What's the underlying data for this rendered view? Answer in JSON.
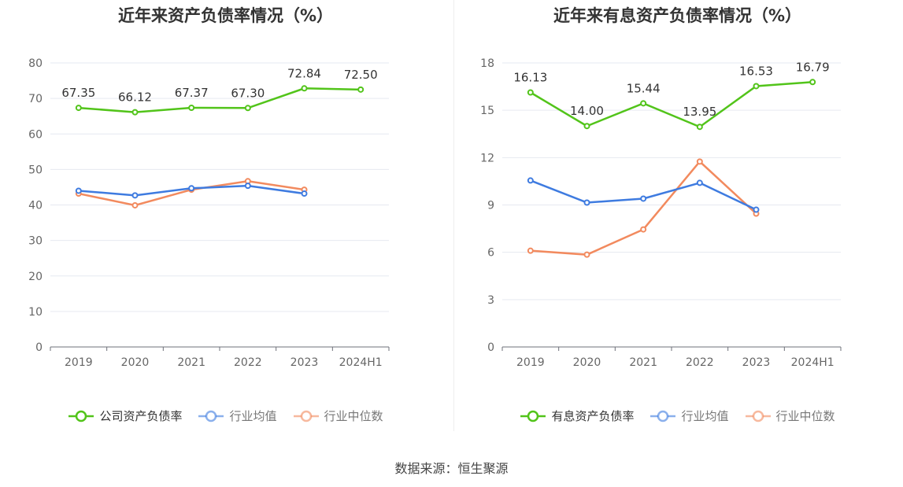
{
  "source": "数据来源：恒生聚源",
  "chart_data": [
    {
      "type": "line",
      "title": "近年来资产负债率情况（%）",
      "categories": [
        "2019",
        "2020",
        "2021",
        "2022",
        "2023",
        "2024H1"
      ],
      "ylim": [
        0,
        80
      ],
      "yticks": [
        0,
        10,
        20,
        30,
        40,
        50,
        60,
        70,
        80
      ],
      "grid": true,
      "legend_position": "bottom",
      "series": [
        {
          "name": "公司资产负债率",
          "color": "#52c41a",
          "values": [
            67.35,
            66.12,
            67.37,
            67.3,
            72.84,
            72.5
          ],
          "labels": true
        },
        {
          "name": "行业均值",
          "color": "#3e7be0",
          "values": [
            44.0,
            42.7,
            44.7,
            45.4,
            43.2,
            null
          ],
          "labels": false
        },
        {
          "name": "行业中位数",
          "color": "#f28a5e",
          "values": [
            43.2,
            39.9,
            44.3,
            46.7,
            44.3,
            null
          ],
          "labels": false
        }
      ]
    },
    {
      "type": "line",
      "title": "近年来有息资产负债率情况（%）",
      "categories": [
        "2019",
        "2020",
        "2021",
        "2022",
        "2023",
        "2024H1"
      ],
      "ylim": [
        0,
        18
      ],
      "yticks": [
        0,
        3,
        6,
        9,
        12,
        15,
        18
      ],
      "grid": true,
      "legend_position": "bottom",
      "series": [
        {
          "name": "有息资产负债率",
          "color": "#52c41a",
          "values": [
            16.13,
            14.0,
            15.44,
            13.95,
            16.53,
            16.79
          ],
          "labels": true
        },
        {
          "name": "行业均值",
          "color": "#3e7be0",
          "values": [
            10.55,
            9.15,
            9.4,
            10.4,
            8.7,
            null
          ],
          "labels": false
        },
        {
          "name": "行业中位数",
          "color": "#f28a5e",
          "values": [
            6.1,
            5.85,
            7.45,
            11.75,
            8.45,
            null
          ],
          "labels": false
        }
      ]
    }
  ]
}
